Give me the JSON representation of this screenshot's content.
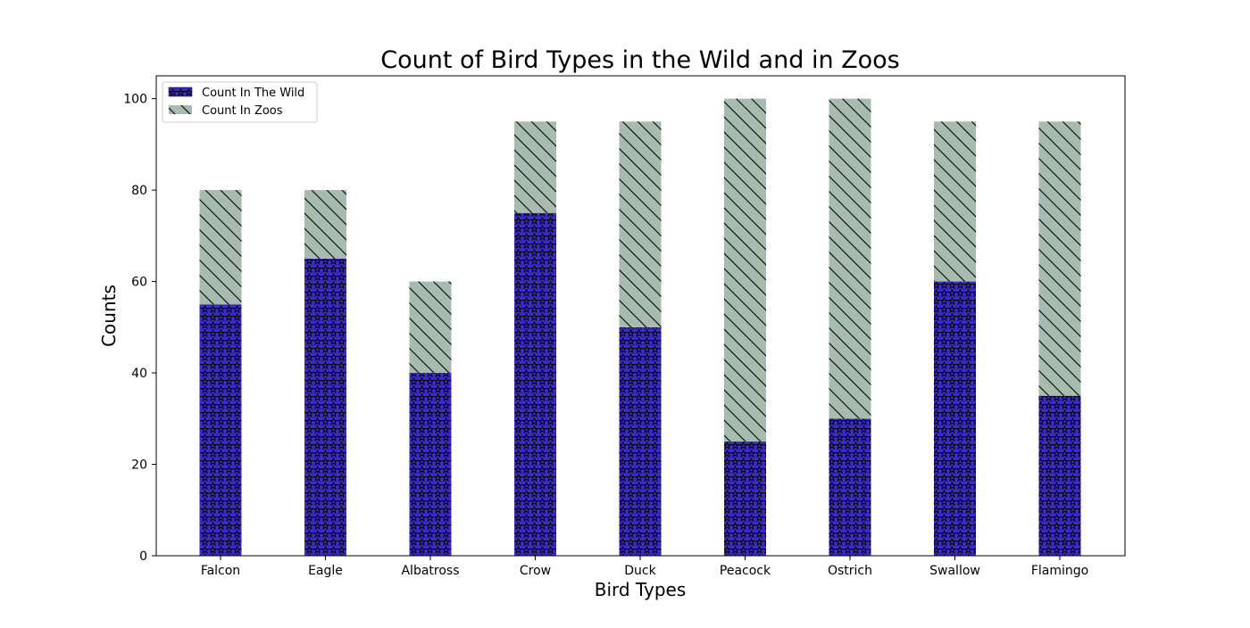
{
  "chart_data": {
    "type": "bar",
    "stacked": true,
    "title": "Count of Bird Types in the Wild and in Zoos",
    "xlabel": "Bird Types",
    "ylabel": "Counts",
    "categories": [
      "Falcon",
      "Eagle",
      "Albatross",
      "Crow",
      "Duck",
      "Peacock",
      "Ostrich",
      "Swallow",
      "Flamingo"
    ],
    "series": [
      {
        "name": "Count In The Wild",
        "values": [
          55,
          65,
          40,
          75,
          50,
          25,
          30,
          60,
          35
        ],
        "color": "#3a2bc4",
        "hatch": "stars"
      },
      {
        "name": "Count In Zoos",
        "values": [
          25,
          15,
          20,
          20,
          45,
          75,
          70,
          35,
          60
        ],
        "color": "#a7bcae",
        "hatch": "diagonal"
      }
    ],
    "ylim": [
      0,
      105
    ],
    "yticks": [
      0,
      20,
      40,
      60,
      80,
      100
    ],
    "grid": false,
    "legend_position": "top-left"
  }
}
